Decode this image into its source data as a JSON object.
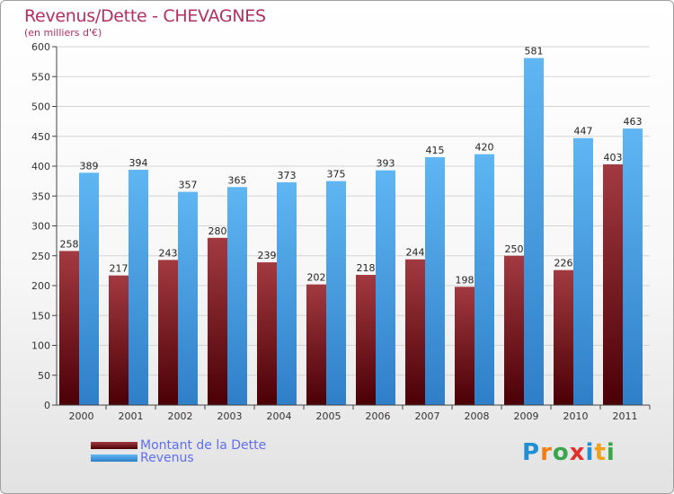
{
  "chart_data": {
    "type": "bar",
    "title": "Revenus/Dette - CHEVAGNES",
    "subtitle": "(en milliers d'€)",
    "categories": [
      "2000",
      "2001",
      "2002",
      "2003",
      "2004",
      "2005",
      "2006",
      "2007",
      "2008",
      "2009",
      "2010",
      "2011"
    ],
    "series": [
      {
        "name": "Montant de la Dette",
        "color": "#7a1a22",
        "values": [
          258,
          217,
          243,
          280,
          239,
          202,
          218,
          244,
          198,
          250,
          226,
          403
        ]
      },
      {
        "name": "Revenus",
        "color": "#4aa3e8",
        "values": [
          389,
          394,
          357,
          365,
          373,
          375,
          393,
          415,
          420,
          581,
          447,
          463
        ]
      }
    ],
    "ylim": [
      0,
      600
    ],
    "yticks": [
      0,
      50,
      100,
      150,
      200,
      250,
      300,
      350,
      400,
      450,
      500,
      550,
      600
    ],
    "grid": true,
    "legend": "bottom-left"
  },
  "logo": {
    "text": "Proxiti",
    "letters": [
      "P",
      "r",
      "o",
      "x",
      "i",
      "t",
      "i"
    ],
    "colors": [
      "#1f8fd6",
      "#f07f1a",
      "#3aa64a",
      "#e2312d",
      "#1f8fd6",
      "#f0a01a",
      "#3aa64a"
    ]
  }
}
